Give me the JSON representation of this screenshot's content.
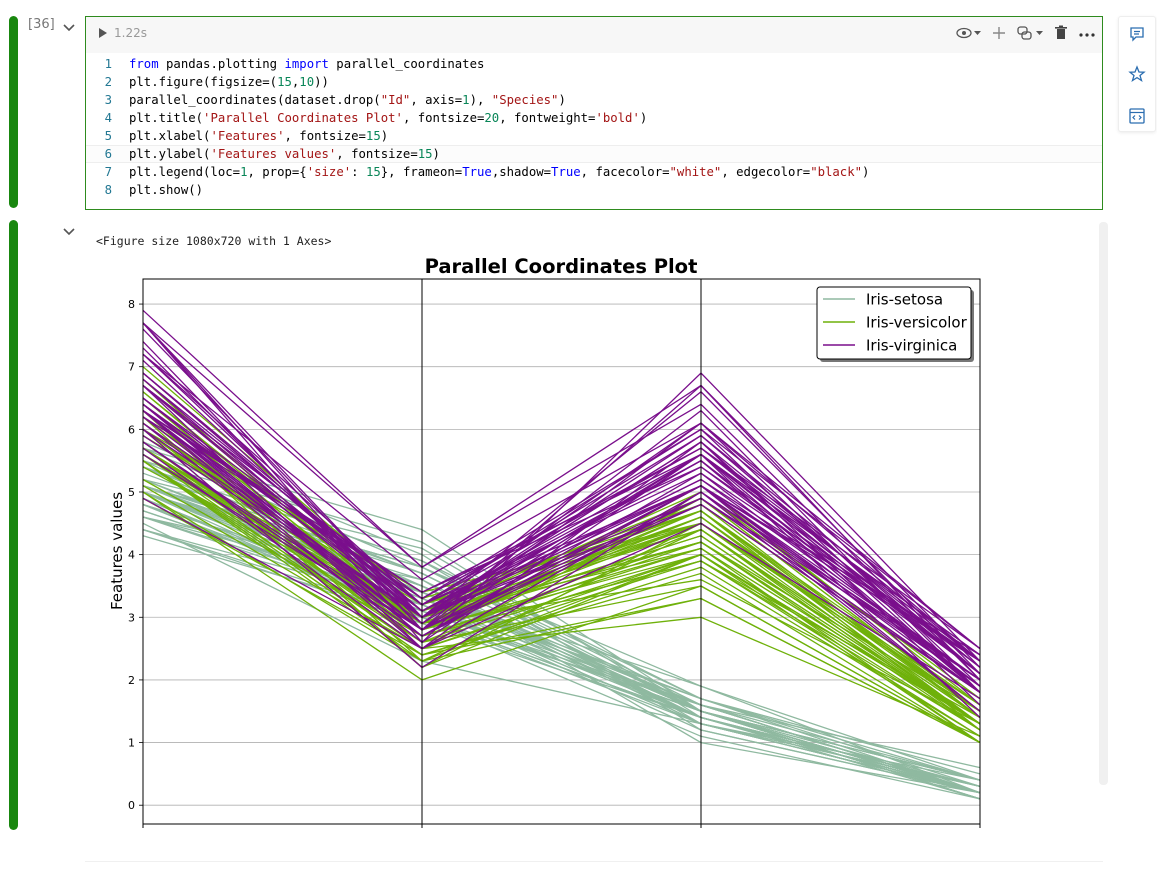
{
  "cell": {
    "counter": "[36]",
    "run_time": "1.22s",
    "code_lines": [
      {
        "num": "1",
        "tokens": [
          {
            "t": "from",
            "c": "kw"
          },
          {
            "t": " pandas.plotting ",
            "c": ""
          },
          {
            "t": "import",
            "c": "kw"
          },
          {
            "t": " parallel_coordinates",
            "c": ""
          }
        ]
      },
      {
        "num": "2",
        "tokens": [
          {
            "t": "plt.figure(figsize=(",
            "c": ""
          },
          {
            "t": "15",
            "c": "num"
          },
          {
            "t": ",",
            "c": ""
          },
          {
            "t": "10",
            "c": "num"
          },
          {
            "t": "))",
            "c": ""
          }
        ]
      },
      {
        "num": "3",
        "tokens": [
          {
            "t": "parallel_coordinates(dataset.drop(",
            "c": ""
          },
          {
            "t": "\"Id\"",
            "c": "str"
          },
          {
            "t": ", axis=",
            "c": ""
          },
          {
            "t": "1",
            "c": "num"
          },
          {
            "t": "), ",
            "c": ""
          },
          {
            "t": "\"Species\"",
            "c": "str"
          },
          {
            "t": ")",
            "c": ""
          }
        ]
      },
      {
        "num": "4",
        "tokens": [
          {
            "t": "plt.title(",
            "c": ""
          },
          {
            "t": "'Parallel Coordinates Plot'",
            "c": "str"
          },
          {
            "t": ", fontsize=",
            "c": ""
          },
          {
            "t": "20",
            "c": "num"
          },
          {
            "t": ", fontweight=",
            "c": ""
          },
          {
            "t": "'bold'",
            "c": "str"
          },
          {
            "t": ")",
            "c": ""
          }
        ]
      },
      {
        "num": "5",
        "tokens": [
          {
            "t": "plt.xlabel(",
            "c": ""
          },
          {
            "t": "'Features'",
            "c": "str"
          },
          {
            "t": ", fontsize=",
            "c": ""
          },
          {
            "t": "15",
            "c": "num"
          },
          {
            "t": ")",
            "c": ""
          }
        ]
      },
      {
        "num": "6",
        "tokens": [
          {
            "t": "plt.ylabel(",
            "c": ""
          },
          {
            "t": "'Features values'",
            "c": "str"
          },
          {
            "t": ", fontsize=",
            "c": ""
          },
          {
            "t": "15",
            "c": "num"
          },
          {
            "t": ")",
            "c": ""
          }
        ]
      },
      {
        "num": "7",
        "tokens": [
          {
            "t": "plt.legend(loc=",
            "c": ""
          },
          {
            "t": "1",
            "c": "num"
          },
          {
            "t": ", prop={",
            "c": ""
          },
          {
            "t": "'size'",
            "c": "str"
          },
          {
            "t": ": ",
            "c": ""
          },
          {
            "t": "15",
            "c": "num"
          },
          {
            "t": "}, frameon=",
            "c": ""
          },
          {
            "t": "True",
            "c": "kw"
          },
          {
            "t": ",shadow=",
            "c": ""
          },
          {
            "t": "True",
            "c": "kw"
          },
          {
            "t": ", facecolor=",
            "c": ""
          },
          {
            "t": "\"white\"",
            "c": "str"
          },
          {
            "t": ", edgecolor=",
            "c": ""
          },
          {
            "t": "\"black\"",
            "c": "str"
          },
          {
            "t": ")",
            "c": ""
          }
        ]
      },
      {
        "num": "8",
        "tokens": [
          {
            "t": "plt.show()",
            "c": ""
          }
        ]
      }
    ]
  },
  "output": {
    "figure_text": "<Figure size 1080x720 with 1 Axes>"
  },
  "colors": {
    "exec_bar": "#19870f",
    "setosa": "#8fb9a0",
    "versicolor": "#6fb10a",
    "virginica": "#7a0f8c"
  },
  "icons": [
    "play-icon",
    "eye-icon",
    "plus-icon",
    "python-icon",
    "trash-icon",
    "more-icon",
    "comment-icon",
    "star-icon",
    "code-icon",
    "chevron-down-icon"
  ],
  "chart_data": {
    "type": "line",
    "title": "Parallel Coordinates Plot",
    "xlabel": "",
    "ylabel": "Features values",
    "ylim": [
      -0.3,
      8.4
    ],
    "yticks": [
      0,
      1,
      2,
      3,
      4,
      5,
      6,
      7,
      8
    ],
    "axes_count": 4,
    "grid": true,
    "legend_position": "top-right",
    "legend": [
      "Iris-setosa",
      "Iris-versicolor",
      "Iris-virginica"
    ],
    "series": [
      {
        "name": "Iris-setosa",
        "color": "#8fb9a0",
        "values": [
          [
            5.1,
            3.5,
            1.4,
            0.2
          ],
          [
            4.9,
            3.0,
            1.4,
            0.2
          ],
          [
            4.7,
            3.2,
            1.3,
            0.2
          ],
          [
            4.6,
            3.1,
            1.5,
            0.2
          ],
          [
            5.0,
            3.6,
            1.4,
            0.2
          ],
          [
            5.4,
            3.9,
            1.7,
            0.4
          ],
          [
            4.6,
            3.4,
            1.4,
            0.3
          ],
          [
            5.0,
            3.4,
            1.5,
            0.2
          ],
          [
            4.4,
            2.9,
            1.4,
            0.2
          ],
          [
            4.9,
            3.1,
            1.5,
            0.1
          ],
          [
            5.4,
            3.7,
            1.5,
            0.2
          ],
          [
            4.8,
            3.4,
            1.6,
            0.2
          ],
          [
            4.8,
            3.0,
            1.4,
            0.1
          ],
          [
            4.3,
            3.0,
            1.1,
            0.1
          ],
          [
            5.8,
            4.0,
            1.2,
            0.2
          ],
          [
            5.7,
            4.4,
            1.5,
            0.4
          ],
          [
            5.4,
            3.9,
            1.3,
            0.4
          ],
          [
            5.1,
            3.5,
            1.4,
            0.3
          ],
          [
            5.7,
            3.8,
            1.7,
            0.3
          ],
          [
            5.1,
            3.8,
            1.5,
            0.3
          ],
          [
            5.4,
            3.4,
            1.7,
            0.2
          ],
          [
            5.1,
            3.7,
            1.5,
            0.4
          ],
          [
            4.6,
            3.6,
            1.0,
            0.2
          ],
          [
            5.1,
            3.3,
            1.7,
            0.5
          ],
          [
            4.8,
            3.4,
            1.9,
            0.2
          ],
          [
            5.0,
            3.0,
            1.6,
            0.2
          ],
          [
            5.0,
            3.4,
            1.6,
            0.4
          ],
          [
            5.2,
            3.5,
            1.5,
            0.2
          ],
          [
            5.2,
            3.4,
            1.4,
            0.2
          ],
          [
            4.7,
            3.2,
            1.6,
            0.2
          ],
          [
            4.8,
            3.1,
            1.6,
            0.2
          ],
          [
            5.4,
            3.4,
            1.5,
            0.4
          ],
          [
            5.2,
            4.1,
            1.5,
            0.1
          ],
          [
            5.5,
            4.2,
            1.4,
            0.2
          ],
          [
            4.9,
            3.1,
            1.5,
            0.1
          ],
          [
            5.0,
            3.2,
            1.2,
            0.2
          ],
          [
            5.5,
            3.5,
            1.3,
            0.2
          ],
          [
            4.9,
            3.1,
            1.5,
            0.1
          ],
          [
            4.4,
            3.0,
            1.3,
            0.2
          ],
          [
            5.1,
            3.4,
            1.5,
            0.2
          ],
          [
            5.0,
            3.5,
            1.3,
            0.3
          ],
          [
            4.5,
            2.3,
            1.3,
            0.3
          ],
          [
            4.4,
            3.2,
            1.3,
            0.2
          ],
          [
            5.0,
            3.5,
            1.6,
            0.6
          ],
          [
            5.1,
            3.8,
            1.9,
            0.4
          ],
          [
            4.8,
            3.0,
            1.4,
            0.3
          ],
          [
            5.1,
            3.8,
            1.6,
            0.2
          ],
          [
            4.6,
            3.2,
            1.4,
            0.2
          ],
          [
            5.3,
            3.7,
            1.5,
            0.2
          ],
          [
            5.0,
            3.3,
            1.4,
            0.2
          ]
        ]
      },
      {
        "name": "Iris-versicolor",
        "color": "#6fb10a",
        "values": [
          [
            7.0,
            3.2,
            4.7,
            1.4
          ],
          [
            6.4,
            3.2,
            4.5,
            1.5
          ],
          [
            6.9,
            3.1,
            4.9,
            1.5
          ],
          [
            5.5,
            2.3,
            4.0,
            1.3
          ],
          [
            6.5,
            2.8,
            4.6,
            1.5
          ],
          [
            5.7,
            2.8,
            4.5,
            1.3
          ],
          [
            6.3,
            3.3,
            4.7,
            1.6
          ],
          [
            4.9,
            2.4,
            3.3,
            1.0
          ],
          [
            6.6,
            2.9,
            4.6,
            1.3
          ],
          [
            5.2,
            2.7,
            3.9,
            1.4
          ],
          [
            5.0,
            2.0,
            3.5,
            1.0
          ],
          [
            5.9,
            3.0,
            4.2,
            1.5
          ],
          [
            6.0,
            2.2,
            4.0,
            1.0
          ],
          [
            6.1,
            2.9,
            4.7,
            1.4
          ],
          [
            5.6,
            2.9,
            3.6,
            1.3
          ],
          [
            6.7,
            3.1,
            4.4,
            1.4
          ],
          [
            5.6,
            3.0,
            4.5,
            1.5
          ],
          [
            5.8,
            2.7,
            4.1,
            1.0
          ],
          [
            6.2,
            2.2,
            4.5,
            1.5
          ],
          [
            5.6,
            2.5,
            3.9,
            1.1
          ],
          [
            5.9,
            3.2,
            4.8,
            1.8
          ],
          [
            6.1,
            2.8,
            4.0,
            1.3
          ],
          [
            6.3,
            2.5,
            4.9,
            1.5
          ],
          [
            6.1,
            2.8,
            4.7,
            1.2
          ],
          [
            6.4,
            2.9,
            4.3,
            1.3
          ],
          [
            6.6,
            3.0,
            4.4,
            1.4
          ],
          [
            6.8,
            2.8,
            4.8,
            1.4
          ],
          [
            6.7,
            3.0,
            5.0,
            1.7
          ],
          [
            6.0,
            2.9,
            4.5,
            1.5
          ],
          [
            5.7,
            2.6,
            3.5,
            1.0
          ],
          [
            5.5,
            2.4,
            3.8,
            1.1
          ],
          [
            5.5,
            2.4,
            3.7,
            1.0
          ],
          [
            5.8,
            2.7,
            3.9,
            1.2
          ],
          [
            6.0,
            2.7,
            5.1,
            1.6
          ],
          [
            5.4,
            3.0,
            4.5,
            1.5
          ],
          [
            6.0,
            3.4,
            4.5,
            1.6
          ],
          [
            6.7,
            3.1,
            4.7,
            1.5
          ],
          [
            6.3,
            2.3,
            4.4,
            1.3
          ],
          [
            5.6,
            3.0,
            4.1,
            1.3
          ],
          [
            5.5,
            2.5,
            4.0,
            1.3
          ],
          [
            5.5,
            2.6,
            4.4,
            1.2
          ],
          [
            6.1,
            3.0,
            4.6,
            1.4
          ],
          [
            5.8,
            2.6,
            4.0,
            1.2
          ],
          [
            5.0,
            2.3,
            3.3,
            1.0
          ],
          [
            5.6,
            2.7,
            4.2,
            1.3
          ],
          [
            5.7,
            3.0,
            4.2,
            1.2
          ],
          [
            5.7,
            2.9,
            4.2,
            1.3
          ],
          [
            6.2,
            2.9,
            4.3,
            1.3
          ],
          [
            5.1,
            2.5,
            3.0,
            1.1
          ],
          [
            5.7,
            2.8,
            4.1,
            1.3
          ]
        ]
      },
      {
        "name": "Iris-virginica",
        "color": "#7a0f8c",
        "values": [
          [
            6.3,
            3.3,
            6.0,
            2.5
          ],
          [
            5.8,
            2.7,
            5.1,
            1.9
          ],
          [
            7.1,
            3.0,
            5.9,
            2.1
          ],
          [
            6.3,
            2.9,
            5.6,
            1.8
          ],
          [
            6.5,
            3.0,
            5.8,
            2.2
          ],
          [
            7.6,
            3.0,
            6.6,
            2.1
          ],
          [
            4.9,
            2.5,
            4.5,
            1.7
          ],
          [
            7.3,
            2.9,
            6.3,
            1.8
          ],
          [
            6.7,
            2.5,
            5.8,
            1.8
          ],
          [
            7.2,
            3.6,
            6.1,
            2.5
          ],
          [
            6.5,
            3.2,
            5.1,
            2.0
          ],
          [
            6.4,
            2.7,
            5.3,
            1.9
          ],
          [
            6.8,
            3.0,
            5.5,
            2.1
          ],
          [
            5.7,
            2.5,
            5.0,
            2.0
          ],
          [
            5.8,
            2.8,
            5.1,
            2.4
          ],
          [
            6.4,
            3.2,
            5.3,
            2.3
          ],
          [
            6.5,
            3.0,
            5.5,
            1.8
          ],
          [
            7.7,
            3.8,
            6.7,
            2.2
          ],
          [
            7.7,
            2.6,
            6.9,
            2.3
          ],
          [
            6.0,
            2.2,
            5.0,
            1.5
          ],
          [
            6.9,
            3.2,
            5.7,
            2.3
          ],
          [
            5.6,
            2.8,
            4.9,
            2.0
          ],
          [
            7.7,
            2.8,
            6.7,
            2.0
          ],
          [
            6.3,
            2.7,
            4.9,
            1.8
          ],
          [
            6.7,
            3.3,
            5.7,
            2.1
          ],
          [
            7.2,
            3.2,
            6.0,
            1.8
          ],
          [
            6.2,
            2.8,
            4.8,
            1.8
          ],
          [
            6.1,
            3.0,
            4.9,
            1.8
          ],
          [
            6.4,
            2.8,
            5.6,
            2.1
          ],
          [
            7.2,
            3.0,
            5.8,
            1.6
          ],
          [
            7.4,
            2.8,
            6.1,
            1.9
          ],
          [
            7.9,
            3.8,
            6.4,
            2.0
          ],
          [
            6.4,
            2.8,
            5.6,
            2.2
          ],
          [
            6.3,
            2.8,
            5.1,
            1.5
          ],
          [
            6.1,
            2.6,
            5.6,
            1.4
          ],
          [
            7.7,
            3.0,
            6.1,
            2.3
          ],
          [
            6.3,
            3.4,
            5.6,
            2.4
          ],
          [
            6.4,
            3.1,
            5.5,
            1.8
          ],
          [
            6.0,
            3.0,
            4.8,
            1.8
          ],
          [
            6.9,
            3.1,
            5.4,
            2.1
          ],
          [
            6.7,
            3.1,
            5.6,
            2.4
          ],
          [
            6.9,
            3.1,
            5.1,
            2.3
          ],
          [
            5.8,
            2.7,
            5.1,
            1.9
          ],
          [
            6.8,
            3.2,
            5.9,
            2.3
          ],
          [
            6.7,
            3.3,
            5.7,
            2.5
          ],
          [
            6.7,
            3.0,
            5.2,
            2.3
          ],
          [
            6.3,
            2.5,
            5.0,
            1.9
          ],
          [
            6.5,
            3.0,
            5.2,
            2.0
          ],
          [
            6.2,
            3.4,
            5.4,
            2.3
          ],
          [
            5.9,
            3.0,
            5.1,
            1.8
          ]
        ]
      }
    ]
  }
}
